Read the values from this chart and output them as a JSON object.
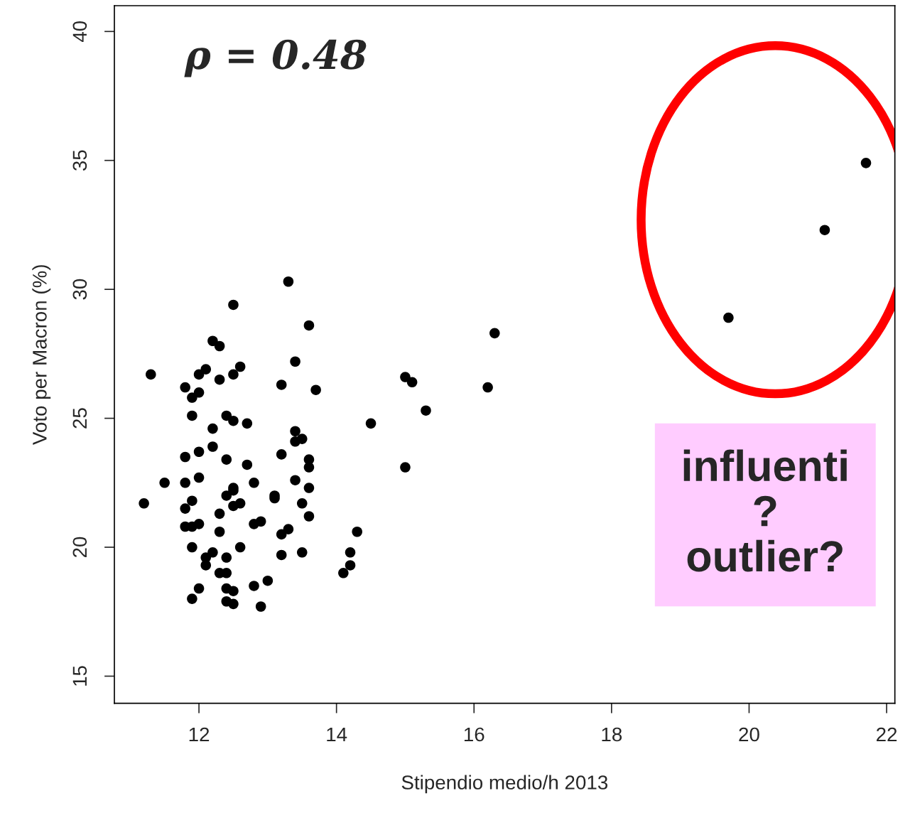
{
  "chart_data": {
    "type": "scatter",
    "xlabel": "Stipendio medio/h 2013",
    "ylabel": "Voto per Macron (%)",
    "x": [
      11.2,
      11.3,
      11.5,
      11.8,
      11.8,
      11.8,
      11.8,
      11.8,
      11.9,
      11.9,
      11.9,
      11.9,
      11.9,
      11.9,
      12.0,
      12.0,
      12.0,
      12.0,
      12.0,
      12.0,
      12.1,
      12.1,
      12.1,
      12.2,
      12.2,
      12.2,
      12.2,
      12.3,
      12.3,
      12.3,
      12.3,
      12.3,
      12.4,
      12.4,
      12.4,
      12.4,
      12.4,
      12.4,
      12.4,
      12.5,
      12.5,
      12.5,
      12.5,
      12.5,
      12.5,
      12.5,
      12.5,
      12.6,
      12.6,
      12.6,
      12.7,
      12.7,
      12.8,
      12.8,
      12.8,
      12.9,
      12.9,
      13.0,
      13.1,
      13.1,
      13.2,
      13.2,
      13.2,
      13.2,
      13.3,
      13.3,
      13.4,
      13.4,
      13.4,
      13.4,
      13.5,
      13.5,
      13.5,
      13.6,
      13.6,
      13.6,
      13.6,
      13.6,
      13.7,
      14.1,
      14.2,
      14.2,
      14.3,
      14.5,
      15.0,
      15.1,
      15.0,
      15.3,
      16.2,
      16.3,
      19.7,
      21.1,
      21.7
    ],
    "values": [
      21.7,
      26.7,
      22.5,
      26.2,
      23.5,
      22.5,
      21.5,
      20.8,
      25.1,
      25.8,
      21.8,
      20.8,
      20.0,
      18.0,
      26.7,
      26.0,
      23.7,
      22.7,
      20.9,
      18.4,
      26.9,
      19.6,
      19.3,
      28.0,
      24.6,
      23.9,
      19.8,
      27.8,
      26.5,
      21.3,
      20.6,
      19.0,
      25.1,
      23.4,
      22.0,
      19.6,
      19.0,
      18.4,
      17.9,
      29.4,
      26.7,
      24.9,
      22.3,
      22.2,
      21.6,
      18.3,
      17.8,
      27.0,
      21.7,
      20.0,
      24.8,
      23.2,
      22.5,
      20.9,
      18.5,
      21.0,
      17.7,
      18.7,
      22.0,
      21.9,
      26.3,
      23.6,
      20.5,
      19.7,
      30.3,
      20.7,
      27.2,
      24.5,
      24.1,
      22.6,
      24.2,
      21.7,
      19.8,
      28.6,
      23.4,
      23.1,
      22.3,
      21.2,
      26.1,
      19.0,
      19.8,
      19.3,
      20.6,
      24.8,
      26.6,
      26.4,
      23.1,
      25.3,
      26.2,
      28.3,
      28.9,
      32.3,
      34.9
    ],
    "color": "#000000",
    "marker": "circle",
    "xlim": [
      10.77,
      22.12
    ],
    "ylim": [
      13.95,
      41.0
    ],
    "xticks": [
      12,
      14,
      16,
      18,
      20,
      22
    ],
    "yticks": [
      15,
      20,
      25,
      30,
      35,
      40
    ],
    "grid": false,
    "annotations": [
      "ρ = 0.48",
      "influenti\n?\noutlier?"
    ]
  }
}
